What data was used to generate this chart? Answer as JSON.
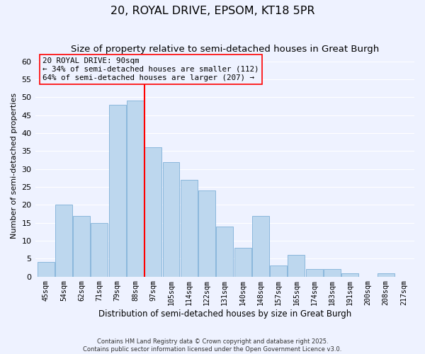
{
  "title": "20, ROYAL DRIVE, EPSOM, KT18 5PR",
  "subtitle": "Size of property relative to semi-detached houses in Great Burgh",
  "xlabel": "Distribution of semi-detached houses by size in Great Burgh",
  "ylabel": "Number of semi-detached properties",
  "bar_labels": [
    "45sqm",
    "54sqm",
    "62sqm",
    "71sqm",
    "79sqm",
    "88sqm",
    "97sqm",
    "105sqm",
    "114sqm",
    "122sqm",
    "131sqm",
    "140sqm",
    "148sqm",
    "157sqm",
    "165sqm",
    "174sqm",
    "183sqm",
    "191sqm",
    "200sqm",
    "208sqm",
    "217sqm"
  ],
  "bar_values": [
    4,
    20,
    17,
    15,
    48,
    49,
    36,
    32,
    27,
    24,
    14,
    8,
    17,
    3,
    6,
    2,
    2,
    1,
    0,
    1,
    0
  ],
  "bar_color": "#BDD7EE",
  "bar_edge_color": "#7EB0D8",
  "property_line_x": 5.5,
  "property_label": "20 ROYAL DRIVE: 90sqm",
  "pct_smaller": 34,
  "count_smaller": 112,
  "pct_larger": 64,
  "count_larger": 207,
  "ylim": [
    0,
    62
  ],
  "yticks": [
    0,
    5,
    10,
    15,
    20,
    25,
    30,
    35,
    40,
    45,
    50,
    55,
    60
  ],
  "background_color": "#EEF2FF",
  "grid_color": "#FFFFFF",
  "footer_line1": "Contains HM Land Registry data © Crown copyright and database right 2025.",
  "footer_line2": "Contains public sector information licensed under the Open Government Licence v3.0.",
  "box_line_color": "red",
  "title_fontsize": 11.5,
  "subtitle_fontsize": 9.5
}
